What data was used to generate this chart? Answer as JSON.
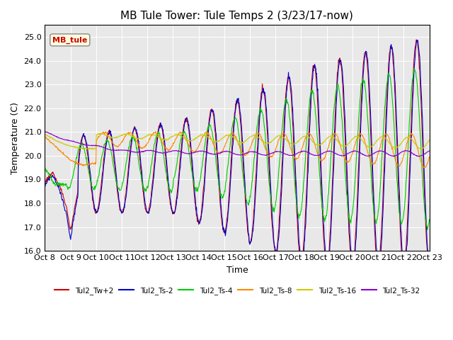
{
  "title": "MB Tule Tower: Tule Temps 2 (3/23/17-now)",
  "xlabel": "Time",
  "ylabel": "Temperature (C)",
  "ylim": [
    16.0,
    25.5
  ],
  "yticks": [
    16.0,
    17.0,
    18.0,
    19.0,
    20.0,
    21.0,
    22.0,
    23.0,
    24.0,
    25.0
  ],
  "xlim": [
    0,
    15
  ],
  "xtick_labels": [
    "Oct 8",
    "Oct 9",
    "Oct 10",
    "Oct 11",
    "Oct 12",
    "Oct 13",
    "Oct 14",
    "Oct 15",
    "Oct 16",
    "Oct 17",
    "Oct 18",
    "Oct 19",
    "Oct 20",
    "Oct 21",
    "Oct 22",
    "Oct 23"
  ],
  "bg_color": "#e8e8e8",
  "legend_label": "MB_tule",
  "series": [
    {
      "name": "Tul2_Tw+2",
      "color": "#cc0000"
    },
    {
      "name": "Tul2_Ts-2",
      "color": "#0000cc"
    },
    {
      "name": "Tul2_Ts-4",
      "color": "#00cc00"
    },
    {
      "name": "Tul2_Ts-8",
      "color": "#ff8800"
    },
    {
      "name": "Tul2_Ts-16",
      "color": "#cccc00"
    },
    {
      "name": "Tul2_Ts-32",
      "color": "#8800cc"
    }
  ],
  "title_fontsize": 11,
  "axis_fontsize": 9,
  "tick_fontsize": 8,
  "figsize": [
    6.4,
    4.8
  ],
  "dpi": 100
}
